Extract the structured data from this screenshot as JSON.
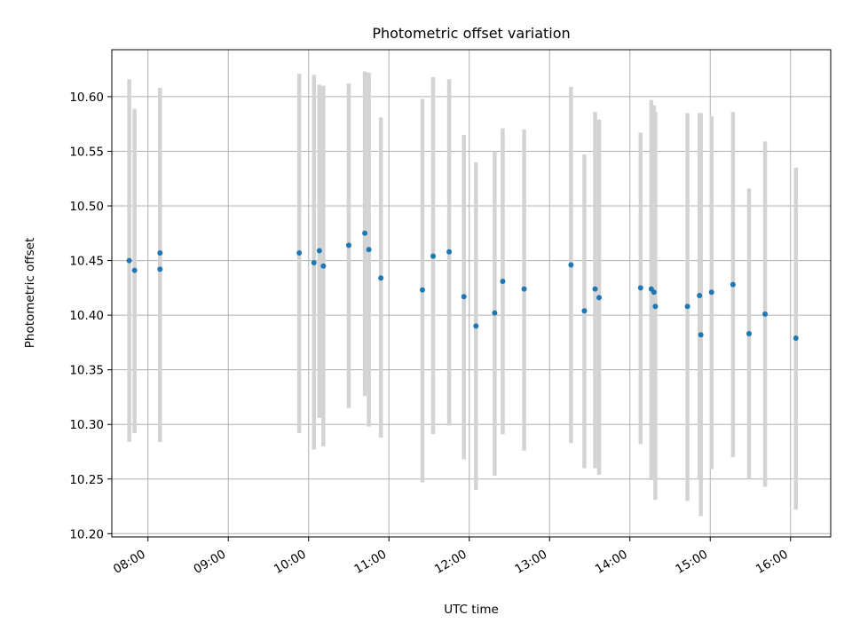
{
  "chart_data": {
    "type": "scatter",
    "title": "Photometric offset variation",
    "xlabel": "UTC time",
    "ylabel": "Photometric offset",
    "xlim": [
      "07:33",
      "16:30"
    ],
    "ylim": [
      10.197,
      10.643
    ],
    "x_ticks": [
      "08:00",
      "09:00",
      "10:00",
      "11:00",
      "12:00",
      "13:00",
      "14:00",
      "15:00",
      "16:00"
    ],
    "y_ticks": [
      "10.20",
      "10.25",
      "10.30",
      "10.35",
      "10.40",
      "10.45",
      "10.50",
      "10.55",
      "10.60"
    ],
    "grid": true,
    "point_color": "#1f77b4",
    "errorbar_color": "#d3d3d3",
    "points": [
      {
        "x": "07:46",
        "y": 10.45,
        "ylow": 10.284,
        "yhigh": 10.616
      },
      {
        "x": "07:50",
        "y": 10.441,
        "ylow": 10.292,
        "yhigh": 10.589
      },
      {
        "x": "08:09",
        "y": 10.457,
        "ylow": 10.284,
        "yhigh": 10.608
      },
      {
        "x": "08:09",
        "y": 10.442,
        "ylow": 10.284,
        "yhigh": 10.608
      },
      {
        "x": "09:53",
        "y": 10.457,
        "ylow": 10.292,
        "yhigh": 10.621
      },
      {
        "x": "10:04",
        "y": 10.448,
        "ylow": 10.277,
        "yhigh": 10.62
      },
      {
        "x": "10:08",
        "y": 10.459,
        "ylow": 10.306,
        "yhigh": 10.611
      },
      {
        "x": "10:11",
        "y": 10.445,
        "ylow": 10.28,
        "yhigh": 10.61
      },
      {
        "x": "10:30",
        "y": 10.464,
        "ylow": 10.315,
        "yhigh": 10.612
      },
      {
        "x": "10:42",
        "y": 10.475,
        "ylow": 10.326,
        "yhigh": 10.623
      },
      {
        "x": "10:45",
        "y": 10.46,
        "ylow": 10.298,
        "yhigh": 10.622
      },
      {
        "x": "10:54",
        "y": 10.434,
        "ylow": 10.288,
        "yhigh": 10.581
      },
      {
        "x": "11:25",
        "y": 10.423,
        "ylow": 10.247,
        "yhigh": 10.598
      },
      {
        "x": "11:33",
        "y": 10.454,
        "ylow": 10.291,
        "yhigh": 10.618
      },
      {
        "x": "11:45",
        "y": 10.458,
        "ylow": 10.299,
        "yhigh": 10.616
      },
      {
        "x": "11:56",
        "y": 10.417,
        "ylow": 10.268,
        "yhigh": 10.565
      },
      {
        "x": "12:05",
        "y": 10.39,
        "ylow": 10.24,
        "yhigh": 10.54
      },
      {
        "x": "12:19",
        "y": 10.402,
        "ylow": 10.253,
        "yhigh": 10.55
      },
      {
        "x": "12:25",
        "y": 10.431,
        "ylow": 10.291,
        "yhigh": 10.571
      },
      {
        "x": "12:41",
        "y": 10.424,
        "ylow": 10.276,
        "yhigh": 10.57
      },
      {
        "x": "13:16",
        "y": 10.446,
        "ylow": 10.283,
        "yhigh": 10.609
      },
      {
        "x": "13:26",
        "y": 10.404,
        "ylow": 10.26,
        "yhigh": 10.547
      },
      {
        "x": "13:34",
        "y": 10.424,
        "ylow": 10.26,
        "yhigh": 10.586
      },
      {
        "x": "13:37",
        "y": 10.416,
        "ylow": 10.254,
        "yhigh": 10.579
      },
      {
        "x": "14:08",
        "y": 10.425,
        "ylow": 10.282,
        "yhigh": 10.567
      },
      {
        "x": "14:16",
        "y": 10.424,
        "ylow": 10.249,
        "yhigh": 10.597
      },
      {
        "x": "14:18",
        "y": 10.421,
        "ylow": 10.251,
        "yhigh": 10.592
      },
      {
        "x": "14:19",
        "y": 10.408,
        "ylow": 10.231,
        "yhigh": 10.586
      },
      {
        "x": "14:43",
        "y": 10.408,
        "ylow": 10.23,
        "yhigh": 10.585
      },
      {
        "x": "14:52",
        "y": 10.418,
        "ylow": 10.25,
        "yhigh": 10.585
      },
      {
        "x": "14:53",
        "y": 10.382,
        "ylow": 10.216,
        "yhigh": 10.585
      },
      {
        "x": "15:01",
        "y": 10.421,
        "ylow": 10.259,
        "yhigh": 10.582
      },
      {
        "x": "15:17",
        "y": 10.428,
        "ylow": 10.27,
        "yhigh": 10.586
      },
      {
        "x": "15:29",
        "y": 10.383,
        "ylow": 10.25,
        "yhigh": 10.516
      },
      {
        "x": "15:41",
        "y": 10.401,
        "ylow": 10.243,
        "yhigh": 10.559
      },
      {
        "x": "16:04",
        "y": 10.379,
        "ylow": 10.222,
        "yhigh": 10.535
      }
    ]
  }
}
